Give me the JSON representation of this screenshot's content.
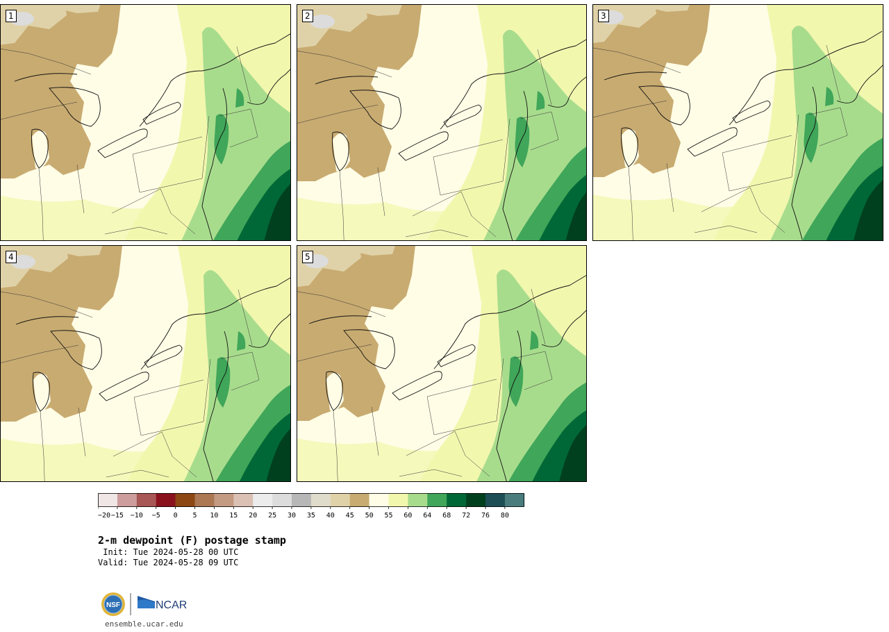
{
  "panels": [
    {
      "label": "1"
    },
    {
      "label": "2"
    },
    {
      "label": "3"
    },
    {
      "label": "4"
    },
    {
      "label": "5"
    }
  ],
  "colorbar": {
    "bins": [
      "#f1e6e6",
      "#cd9d9d",
      "#a85756",
      "#8a121d",
      "#8c4713",
      "#ac7753",
      "#c39a82",
      "#dbc0b4",
      "#ececec",
      "#dcdcdc",
      "#b7b7b7",
      "#dfdccb",
      "#e0d2a8",
      "#c8ab71",
      "#fffde6",
      "#f2f7ae",
      "#a8dc8d",
      "#40a659",
      "#006837",
      "#00401f",
      "#1d4e55",
      "#4a7c7d"
    ],
    "tick_labels": [
      "−20",
      "−15",
      "−10",
      "−5",
      "0",
      "5",
      "10",
      "15",
      "20",
      "25",
      "30",
      "35",
      "40",
      "45",
      "50",
      "55",
      "60",
      "64",
      "68",
      "72",
      "76",
      "80"
    ]
  },
  "palette": {
    "dry": "#c8ab71",
    "dry_light": "#e0d2a8",
    "gray": "#dcdcdc",
    "cream": "#fffde6",
    "yellow": "#f2f7ae",
    "light_green": "#a8dc8d",
    "green": "#40a659",
    "dark_green": "#006837",
    "darkest_green": "#00401f"
  },
  "title": {
    "main": "2-m dewpoint (F) postage stamp",
    "init": " Init: Tue 2024-05-28 00 UTC",
    "valid": "Valid: Tue 2024-05-28 09 UTC"
  },
  "logo": {
    "nsf_text": "NSF",
    "ncar_text": "NCAR"
  },
  "footer": {
    "site": "ensemble.ucar.edu"
  }
}
